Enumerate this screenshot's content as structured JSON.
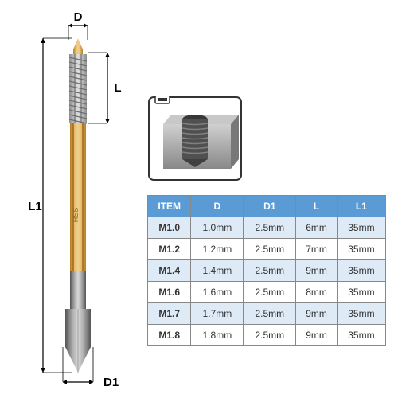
{
  "dimensions": {
    "d_label": "D",
    "l_label": "L",
    "l1_label": "L1",
    "d1_label": "D1"
  },
  "table": {
    "headers": [
      "ITEM",
      "D",
      "D1",
      "L",
      "L1"
    ],
    "rows": [
      [
        "M1.0",
        "1.0mm",
        "2.5mm",
        "6mm",
        "35mm"
      ],
      [
        "M1.2",
        "1.2mm",
        "2.5mm",
        "7mm",
        "35mm"
      ],
      [
        "M1.4",
        "1.4mm",
        "2.5mm",
        "9mm",
        "35mm"
      ],
      [
        "M1.6",
        "1.6mm",
        "2.5mm",
        "8mm",
        "35mm"
      ],
      [
        "M1.7",
        "1.7mm",
        "2.5mm",
        "9mm",
        "35mm"
      ],
      [
        "M1.8",
        "1.8mm",
        "2.5mm",
        "9mm",
        "35mm"
      ]
    ],
    "header_bg": "#5b9bd5",
    "header_color": "#ffffff",
    "row_odd_bg": "#deebf7",
    "row_even_bg": "#ffffff",
    "border_color": "#888888",
    "text_color": "#333333"
  },
  "tool": {
    "body_color": "#d9a03a",
    "body_gradient_light": "#e8c070",
    "body_gradient_dark": "#b87f20",
    "shank_color": "#7a7a7a",
    "shank_gradient_light": "#b0b0b0",
    "shank_gradient_dark": "#555555",
    "thread_color": "#c0c0c0",
    "marking_text": "HSS",
    "marking_color": "#666666"
  },
  "diagram": {
    "frame_color": "#333333",
    "metal_color": "#a8a8a8",
    "metal_light": "#d0d0d0",
    "hole_color": "#606060",
    "thread_color": "#808080"
  }
}
